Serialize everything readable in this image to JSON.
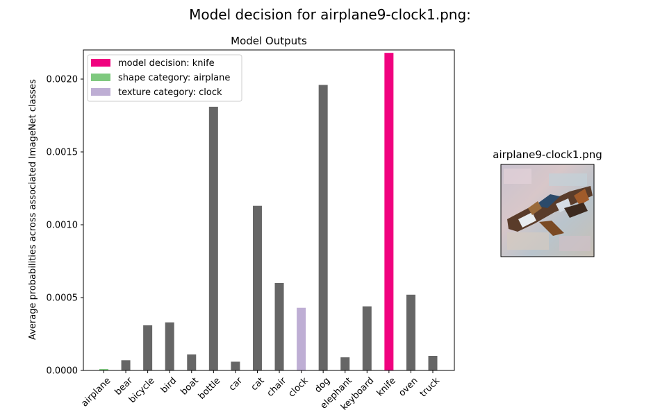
{
  "figure": {
    "suptitle": "Model decision for airplane9-clock1.png:"
  },
  "chart_data": {
    "type": "bar",
    "title": "Model Outputs",
    "xlabel": "",
    "ylabel": "Average probabilities across associated ImageNet classes",
    "ylim": [
      0,
      0.0022
    ],
    "yticks": [
      0.0,
      0.0005,
      0.001,
      0.0015,
      0.002
    ],
    "ytick_labels": [
      "0.0000",
      "0.0005",
      "0.0010",
      "0.0015",
      "0.0020"
    ],
    "grid": false,
    "legend_placement": "top-left",
    "categories": [
      "airplane",
      "bear",
      "bicycle",
      "bird",
      "boat",
      "bottle",
      "car",
      "cat",
      "chair",
      "clock",
      "dog",
      "elephant",
      "keyboard",
      "knife",
      "oven",
      "truck"
    ],
    "values": [
      1e-05,
      7e-05,
      0.00031,
      0.00033,
      0.00011,
      0.00181,
      6e-05,
      0.00113,
      0.0006,
      0.00043,
      0.00196,
      9e-05,
      0.00044,
      0.00218,
      0.00052,
      0.0001
    ],
    "bar_colors": [
      "#7fc97f",
      "#666666",
      "#666666",
      "#666666",
      "#666666",
      "#666666",
      "#666666",
      "#666666",
      "#666666",
      "#beaed4",
      "#666666",
      "#666666",
      "#666666",
      "#f0027f",
      "#666666",
      "#666666"
    ],
    "legend": [
      {
        "label": "model decision: knife",
        "color": "#f0027f"
      },
      {
        "label": "shape category: airplane",
        "color": "#7fc97f"
      },
      {
        "label": "texture category: clock",
        "color": "#beaed4"
      }
    ]
  },
  "thumbnail": {
    "title": "airplane9-clock1.png",
    "description_icon": "stylized-airplane-image"
  }
}
